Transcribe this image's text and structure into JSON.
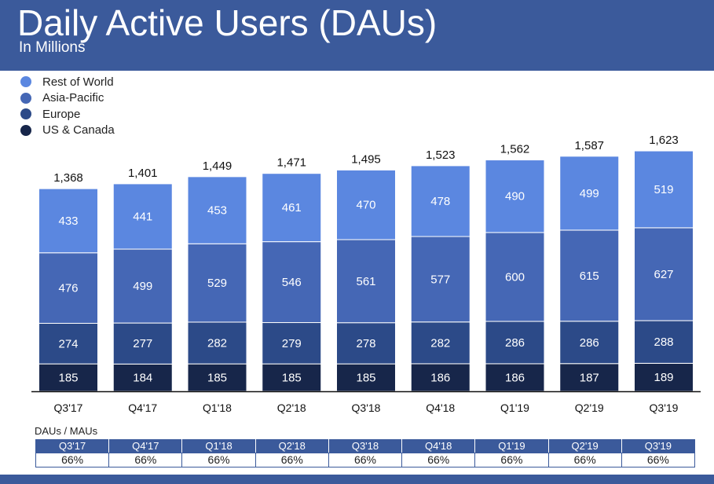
{
  "header": {
    "title": "Daily Active Users (DAUs)",
    "subtitle": "In Millions"
  },
  "colors": {
    "header_bg": "#3b5a9b",
    "rest_of_world": "#5b87e0",
    "asia_pacific": "#4567b5",
    "europe": "#2c4a88",
    "us_canada": "#17264a"
  },
  "chart_data": {
    "type": "bar",
    "stacked": true,
    "categories": [
      "Q3'17",
      "Q4'17",
      "Q1'18",
      "Q2'18",
      "Q3'18",
      "Q4'18",
      "Q1'19",
      "Q2'19",
      "Q3'19"
    ],
    "series": [
      {
        "name": "US & Canada",
        "color": "#17264a",
        "values": [
          185,
          184,
          185,
          185,
          185,
          186,
          186,
          187,
          189
        ]
      },
      {
        "name": "Europe",
        "color": "#2c4a88",
        "values": [
          274,
          277,
          282,
          279,
          278,
          282,
          286,
          286,
          288
        ]
      },
      {
        "name": "Asia-Pacific",
        "color": "#4567b5",
        "values": [
          476,
          499,
          529,
          546,
          561,
          577,
          600,
          615,
          627
        ]
      },
      {
        "name": "Rest of World",
        "color": "#5b87e0",
        "values": [
          433,
          441,
          453,
          461,
          470,
          478,
          490,
          499,
          519
        ]
      }
    ],
    "totals": [
      "1,368",
      "1,401",
      "1,449",
      "1,471",
      "1,495",
      "1,523",
      "1,562",
      "1,587",
      "1,623"
    ],
    "legend_order": [
      "Rest of World",
      "Asia-Pacific",
      "Europe",
      "US & Canada"
    ],
    "legend_position": "top-left",
    "ylim": [
      0,
      1700
    ],
    "xlabel": "",
    "ylabel": "",
    "grid": false
  },
  "ratio_table": {
    "title": "DAUs / MAUs",
    "quarters": [
      "Q3'17",
      "Q4'17",
      "Q1'18",
      "Q2'18",
      "Q3'18",
      "Q4'18",
      "Q1'19",
      "Q2'19",
      "Q3'19"
    ],
    "values": [
      "66%",
      "66%",
      "66%",
      "66%",
      "66%",
      "66%",
      "66%",
      "66%",
      "66%"
    ]
  }
}
